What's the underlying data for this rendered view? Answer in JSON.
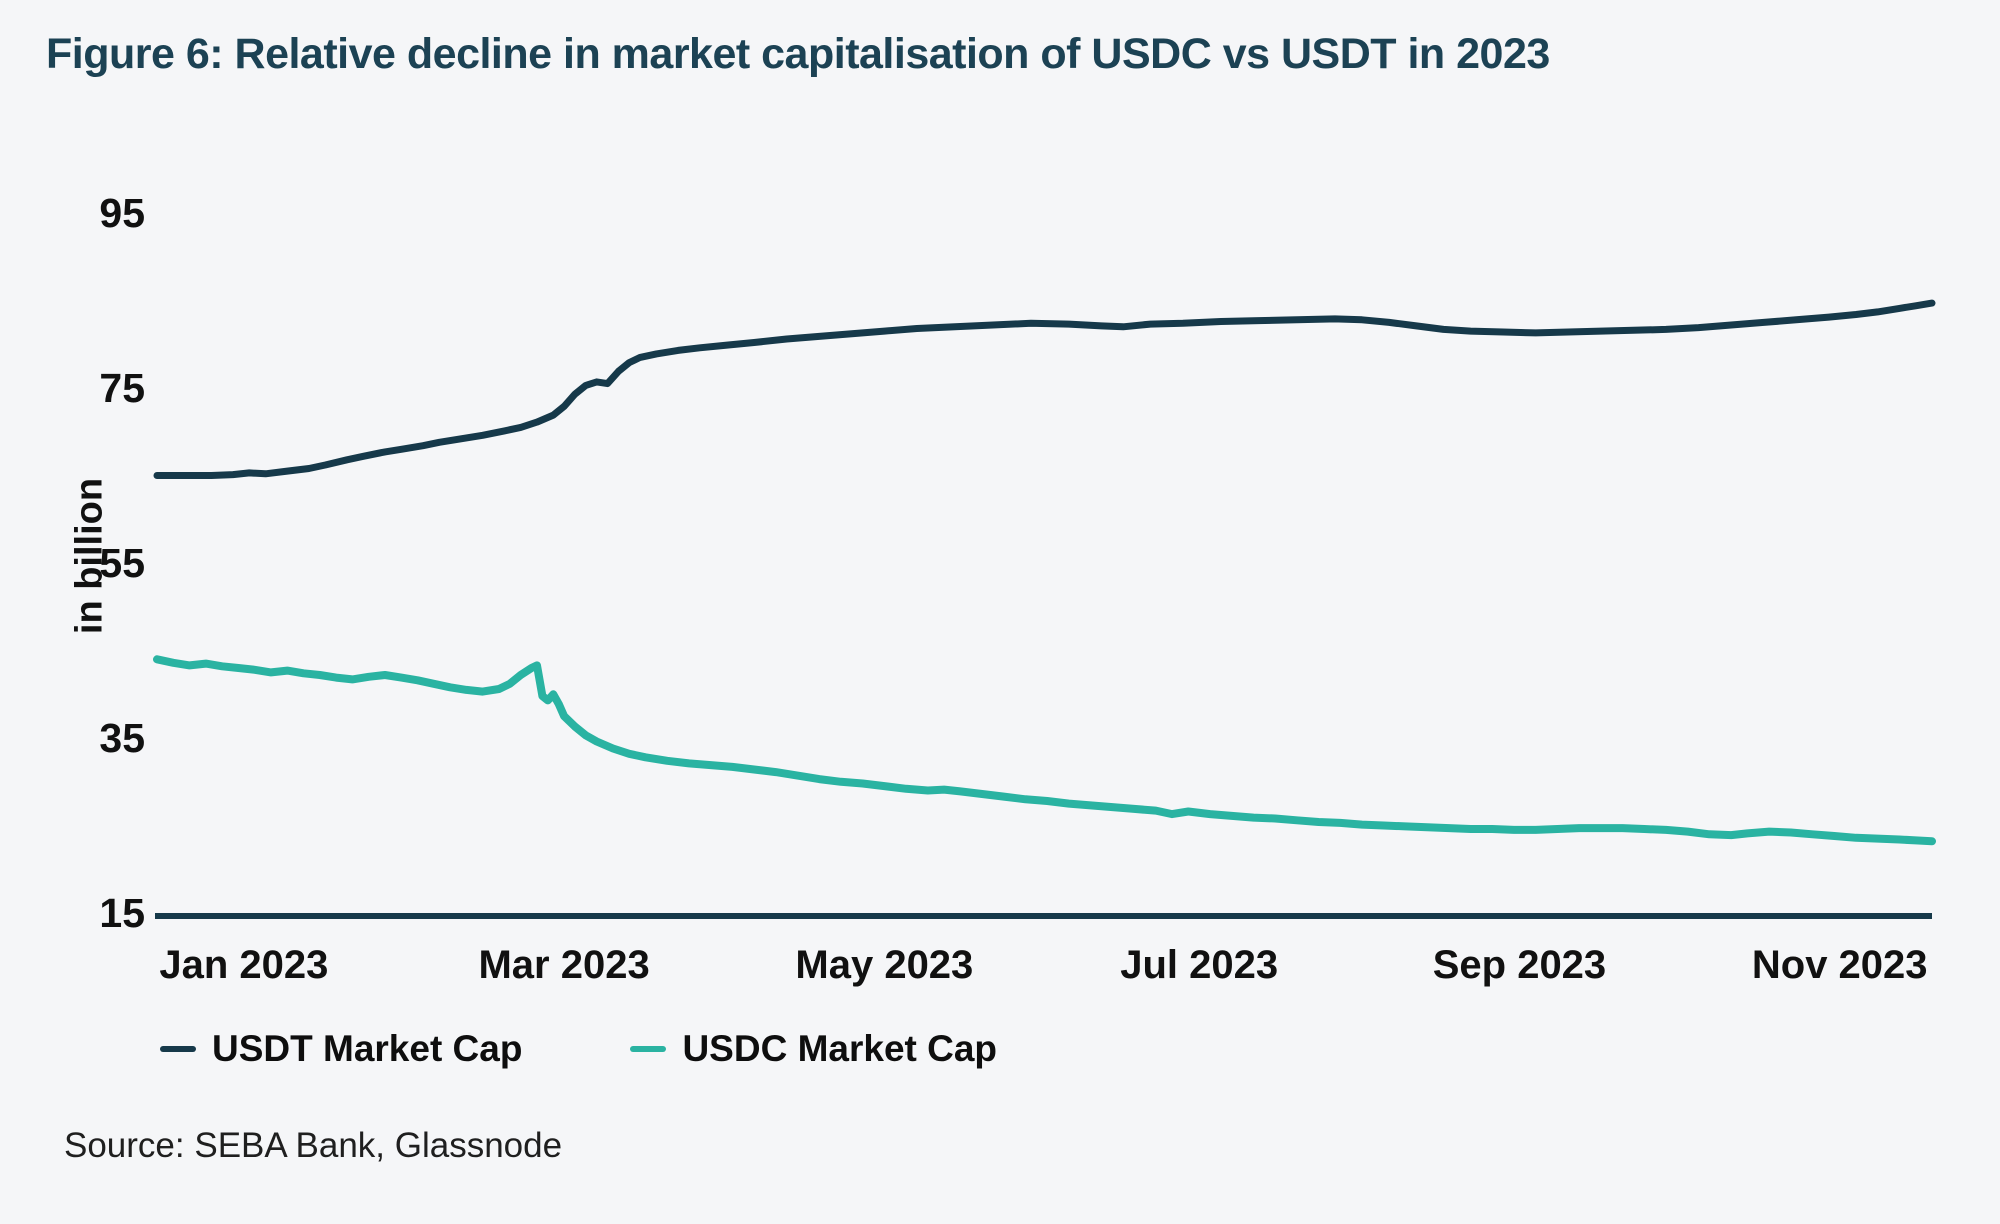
{
  "title": "Figure 6: Relative decline in market capitalisation of USDC vs USDT in 2023",
  "source": "Source: SEBA Bank, Glassnode",
  "colors": {
    "background": "#f5f6f8",
    "title": "#1c4254",
    "axis": "#16394a",
    "usdt_line": "#16394a",
    "usdc_line": "#2ab3a2",
    "tick_text": "#111111"
  },
  "legend": [
    {
      "label": "USDT Market Cap",
      "color": "#16394a"
    },
    {
      "label": "USDC Market Cap",
      "color": "#2ab3a2"
    }
  ],
  "chart_data": {
    "type": "line",
    "title": "Figure 6: Relative decline in market capitalisation of USDC vs USDT in 2023",
    "xlabel": "",
    "ylabel": "in billion",
    "ylim": [
      15,
      100
    ],
    "y_ticks": [
      95,
      75,
      55,
      35,
      15
    ],
    "grid": false,
    "legend_position": "bottom",
    "x_unit": "days since 2023-01-01",
    "x_range_days": [
      0,
      327
    ],
    "x_ticks": [
      {
        "label": "Jan 2023",
        "day": 16
      },
      {
        "label": "Mar 2023",
        "day": 75
      },
      {
        "label": "May 2023",
        "day": 134
      },
      {
        "label": "Jul 2023",
        "day": 192
      },
      {
        "label": "Sep 2023",
        "day": 251
      },
      {
        "label": "Nov 2023",
        "day": 310
      }
    ],
    "series": [
      {
        "name": "USDT Market Cap",
        "color": "#16394a",
        "points": [
          [
            0,
            65.0
          ],
          [
            5,
            65.0
          ],
          [
            10,
            65.0
          ],
          [
            14,
            65.1
          ],
          [
            17,
            65.3
          ],
          [
            20,
            65.2
          ],
          [
            24,
            65.5
          ],
          [
            28,
            65.8
          ],
          [
            31,
            66.2
          ],
          [
            35,
            66.8
          ],
          [
            38,
            67.2
          ],
          [
            42,
            67.7
          ],
          [
            45,
            68.0
          ],
          [
            49,
            68.4
          ],
          [
            52,
            68.8
          ],
          [
            56,
            69.2
          ],
          [
            60,
            69.6
          ],
          [
            64,
            70.1
          ],
          [
            67,
            70.5
          ],
          [
            70,
            71.1
          ],
          [
            73,
            71.9
          ],
          [
            75,
            72.9
          ],
          [
            77,
            74.3
          ],
          [
            79,
            75.3
          ],
          [
            81,
            75.7
          ],
          [
            83,
            75.5
          ],
          [
            85,
            76.9
          ],
          [
            87,
            77.9
          ],
          [
            89,
            78.5
          ],
          [
            92,
            78.9
          ],
          [
            96,
            79.3
          ],
          [
            100,
            79.6
          ],
          [
            105,
            79.9
          ],
          [
            110,
            80.2
          ],
          [
            116,
            80.6
          ],
          [
            122,
            80.9
          ],
          [
            128,
            81.2
          ],
          [
            134,
            81.5
          ],
          [
            140,
            81.8
          ],
          [
            147,
            82.0
          ],
          [
            154,
            82.2
          ],
          [
            161,
            82.4
          ],
          [
            168,
            82.3
          ],
          [
            174,
            82.1
          ],
          [
            178,
            82.0
          ],
          [
            183,
            82.3
          ],
          [
            189,
            82.4
          ],
          [
            196,
            82.6
          ],
          [
            203,
            82.7
          ],
          [
            210,
            82.8
          ],
          [
            217,
            82.9
          ],
          [
            222,
            82.8
          ],
          [
            227,
            82.5
          ],
          [
            232,
            82.1
          ],
          [
            237,
            81.7
          ],
          [
            242,
            81.5
          ],
          [
            248,
            81.4
          ],
          [
            254,
            81.3
          ],
          [
            260,
            81.4
          ],
          [
            266,
            81.5
          ],
          [
            272,
            81.6
          ],
          [
            278,
            81.7
          ],
          [
            284,
            81.9
          ],
          [
            290,
            82.2
          ],
          [
            296,
            82.5
          ],
          [
            302,
            82.8
          ],
          [
            308,
            83.1
          ],
          [
            313,
            83.4
          ],
          [
            317,
            83.7
          ],
          [
            321,
            84.1
          ],
          [
            324,
            84.4
          ],
          [
            327,
            84.7
          ]
        ]
      },
      {
        "name": "USDC Market Cap",
        "color": "#2ab3a2",
        "points": [
          [
            0,
            44.0
          ],
          [
            3,
            43.6
          ],
          [
            6,
            43.3
          ],
          [
            9,
            43.5
          ],
          [
            12,
            43.2
          ],
          [
            15,
            43.0
          ],
          [
            18,
            42.8
          ],
          [
            21,
            42.5
          ],
          [
            24,
            42.7
          ],
          [
            27,
            42.4
          ],
          [
            30,
            42.2
          ],
          [
            33,
            41.9
          ],
          [
            36,
            41.7
          ],
          [
            39,
            42.0
          ],
          [
            42,
            42.2
          ],
          [
            45,
            41.9
          ],
          [
            48,
            41.6
          ],
          [
            51,
            41.2
          ],
          [
            54,
            40.8
          ],
          [
            57,
            40.5
          ],
          [
            60,
            40.3
          ],
          [
            63,
            40.6
          ],
          [
            65,
            41.2
          ],
          [
            67,
            42.2
          ],
          [
            69,
            43.0
          ],
          [
            70,
            43.3
          ],
          [
            71,
            39.8
          ],
          [
            72,
            39.3
          ],
          [
            73,
            40.0
          ],
          [
            74,
            38.9
          ],
          [
            75,
            37.5
          ],
          [
            77,
            36.3
          ],
          [
            79,
            35.3
          ],
          [
            81,
            34.6
          ],
          [
            84,
            33.8
          ],
          [
            87,
            33.2
          ],
          [
            90,
            32.8
          ],
          [
            94,
            32.4
          ],
          [
            98,
            32.1
          ],
          [
            102,
            31.9
          ],
          [
            106,
            31.7
          ],
          [
            110,
            31.4
          ],
          [
            114,
            31.1
          ],
          [
            118,
            30.7
          ],
          [
            122,
            30.3
          ],
          [
            126,
            30.0
          ],
          [
            130,
            29.8
          ],
          [
            134,
            29.5
          ],
          [
            138,
            29.2
          ],
          [
            142,
            29.0
          ],
          [
            145,
            29.1
          ],
          [
            148,
            28.9
          ],
          [
            152,
            28.6
          ],
          [
            156,
            28.3
          ],
          [
            160,
            28.0
          ],
          [
            164,
            27.8
          ],
          [
            168,
            27.5
          ],
          [
            172,
            27.3
          ],
          [
            176,
            27.1
          ],
          [
            180,
            26.9
          ],
          [
            184,
            26.7
          ],
          [
            187,
            26.3
          ],
          [
            190,
            26.6
          ],
          [
            194,
            26.3
          ],
          [
            198,
            26.1
          ],
          [
            202,
            25.9
          ],
          [
            206,
            25.8
          ],
          [
            210,
            25.6
          ],
          [
            214,
            25.4
          ],
          [
            218,
            25.3
          ],
          [
            222,
            25.1
          ],
          [
            226,
            25.0
          ],
          [
            230,
            24.9
          ],
          [
            234,
            24.8
          ],
          [
            238,
            24.7
          ],
          [
            242,
            24.6
          ],
          [
            246,
            24.6
          ],
          [
            250,
            24.5
          ],
          [
            254,
            24.5
          ],
          [
            258,
            24.6
          ],
          [
            262,
            24.7
          ],
          [
            266,
            24.7
          ],
          [
            270,
            24.7
          ],
          [
            274,
            24.6
          ],
          [
            278,
            24.5
          ],
          [
            282,
            24.3
          ],
          [
            286,
            24.0
          ],
          [
            290,
            23.9
          ],
          [
            293,
            24.1
          ],
          [
            297,
            24.3
          ],
          [
            301,
            24.2
          ],
          [
            305,
            24.0
          ],
          [
            309,
            23.8
          ],
          [
            313,
            23.6
          ],
          [
            317,
            23.5
          ],
          [
            321,
            23.4
          ],
          [
            324,
            23.3
          ],
          [
            327,
            23.2
          ]
        ]
      }
    ]
  }
}
